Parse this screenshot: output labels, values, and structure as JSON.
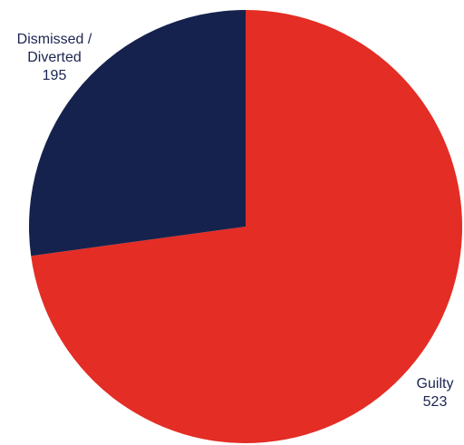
{
  "chart_data": {
    "type": "pie",
    "slices": [
      {
        "label_lines": [
          "Guilty"
        ],
        "value": 523,
        "value_text": "523",
        "color": "#e32d25"
      },
      {
        "label_lines": [
          "Dismissed /",
          "Diverted"
        ],
        "value": 195,
        "value_text": "195",
        "color": "#15224d"
      }
    ],
    "start": "12 o'clock",
    "direction": "clockwise",
    "legend": "none"
  }
}
